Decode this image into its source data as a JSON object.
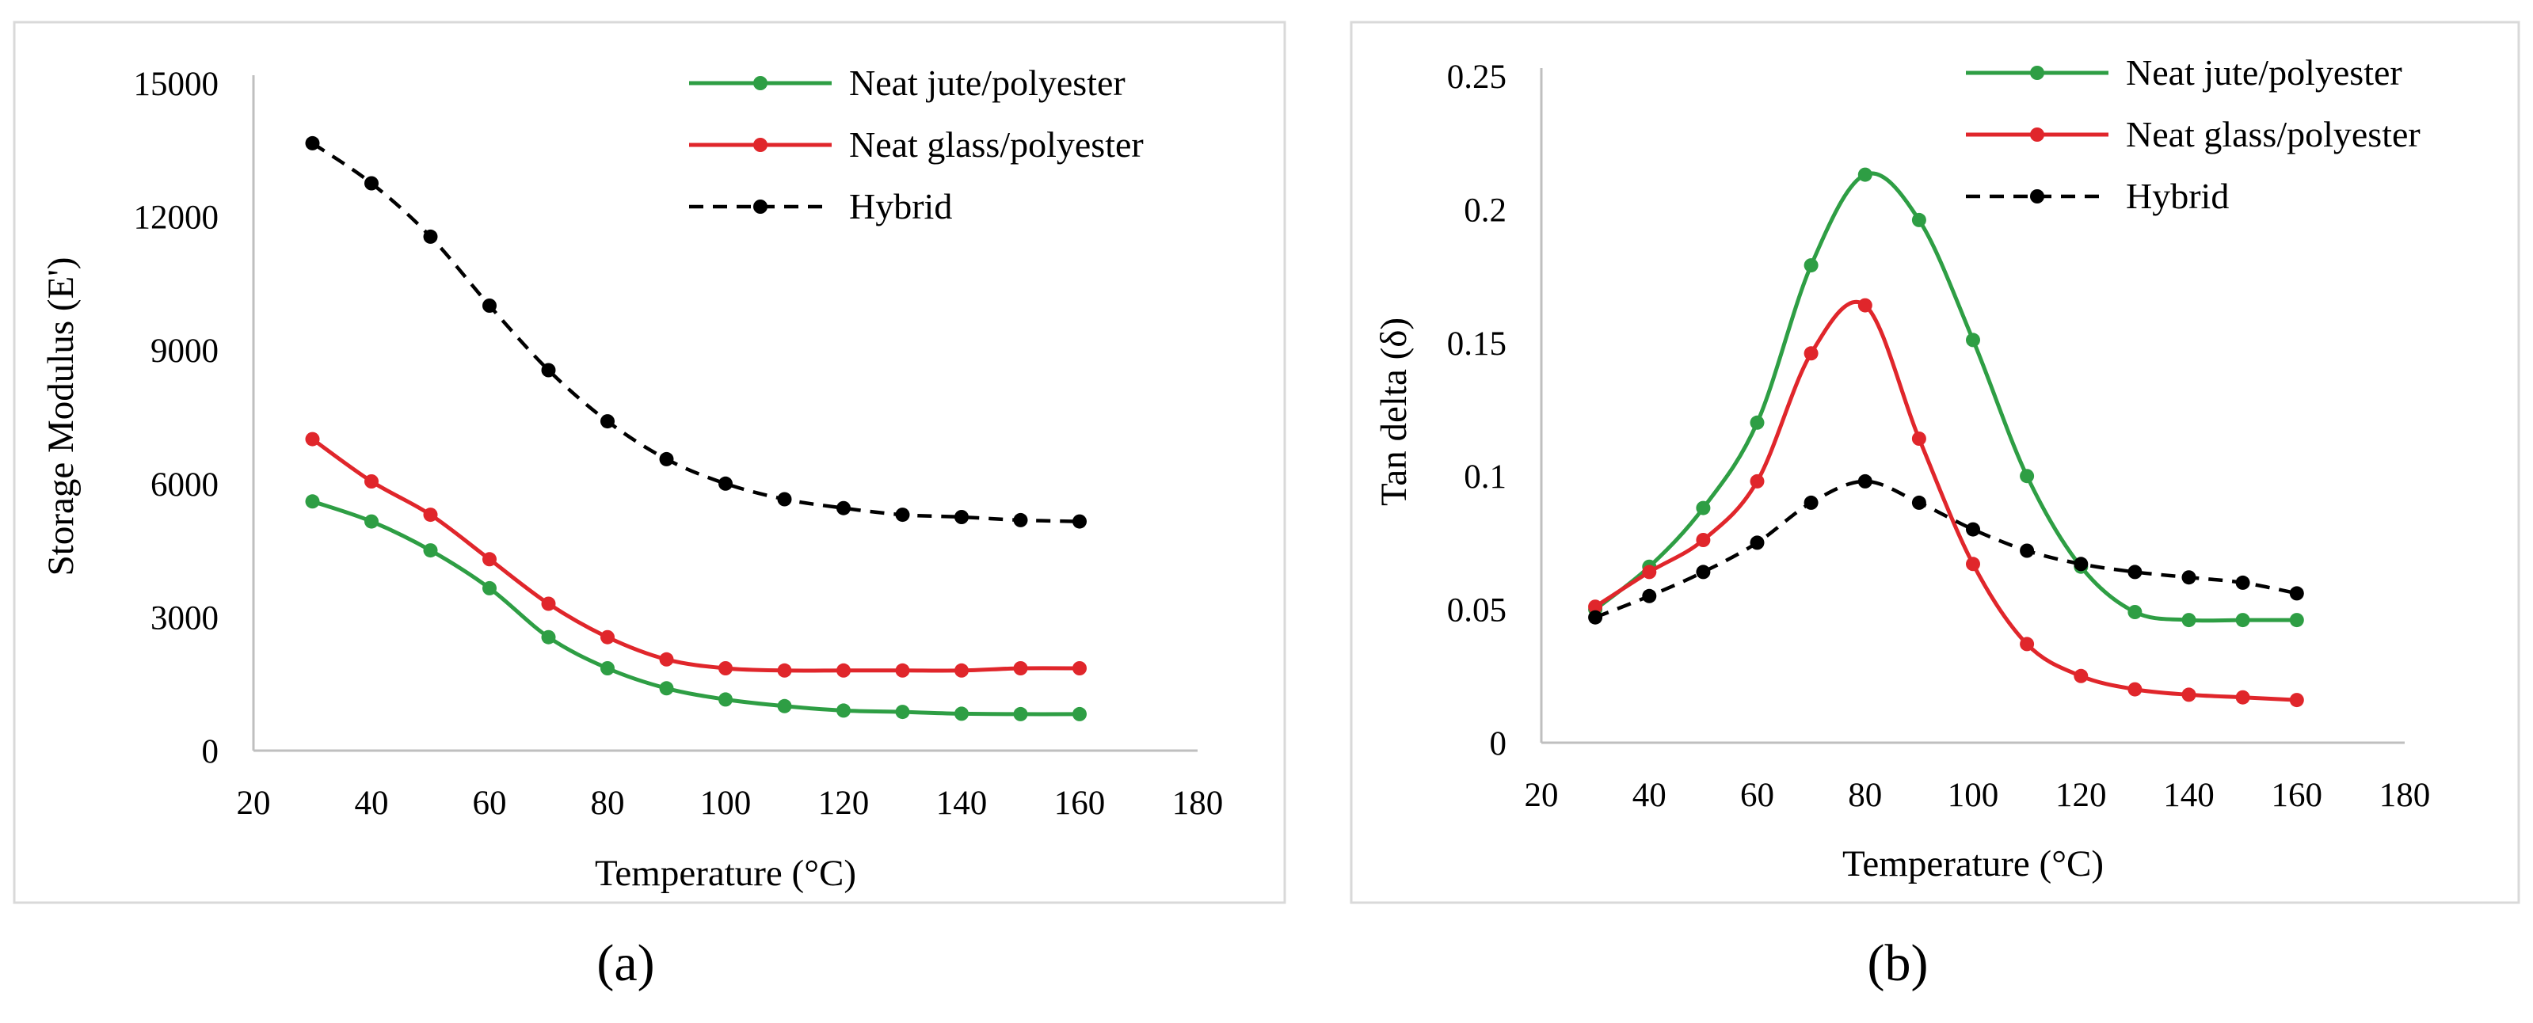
{
  "colors": {
    "jute": "#2e9e44",
    "glass": "#e0262b",
    "hybrid": "#000000",
    "frame": "#d9d9d9"
  },
  "panels": [
    {
      "caption": "(a)"
    },
    {
      "caption": "(b)"
    }
  ],
  "chart_data": [
    {
      "type": "line",
      "title": "",
      "xlabel": "Temperature (°C)",
      "ylabel": "Storage Modulus (E')",
      "xlim": [
        20,
        180
      ],
      "ylim": [
        0,
        15000
      ],
      "xticks": [
        20,
        40,
        60,
        80,
        100,
        120,
        140,
        160,
        180
      ],
      "yticks": [
        0,
        3000,
        6000,
        9000,
        12000,
        15000
      ],
      "ytick_labels": [
        "0",
        "3000",
        "6000",
        "9000",
        "12000",
        "15000"
      ],
      "grid": false,
      "legend_position": "top-right",
      "x": [
        30,
        40,
        50,
        60,
        70,
        80,
        90,
        100,
        110,
        120,
        130,
        140,
        150,
        160
      ],
      "series": [
        {
          "name": "Neat jute/polyester",
          "style": "solid",
          "color": "#2e9e44",
          "values": [
            5600,
            5150,
            4500,
            3650,
            2550,
            1850,
            1400,
            1150,
            1000,
            900,
            870,
            830,
            820,
            820
          ]
        },
        {
          "name": "Neat glass/polyester",
          "style": "solid",
          "color": "#e0262b",
          "values": [
            7000,
            6050,
            5300,
            4300,
            3300,
            2550,
            2050,
            1850,
            1800,
            1800,
            1800,
            1800,
            1850,
            1850
          ]
        },
        {
          "name": "Hybrid",
          "style": "dashed",
          "color": "#000000",
          "values": [
            13650,
            12750,
            11550,
            10000,
            8550,
            7400,
            6550,
            6000,
            5650,
            5450,
            5300,
            5250,
            5180,
            5150
          ]
        }
      ]
    },
    {
      "type": "line",
      "title": "",
      "xlabel": "Temperature (°C)",
      "ylabel": "Tan delta (δ)",
      "xlim": [
        20,
        180
      ],
      "ylim": [
        0,
        0.25
      ],
      "xticks": [
        20,
        40,
        60,
        80,
        100,
        120,
        140,
        160,
        180
      ],
      "yticks": [
        0,
        0.05,
        0.1,
        0.15,
        0.2,
        0.25
      ],
      "ytick_labels": [
        "0",
        "0.05",
        "0.1",
        "0.15",
        "0.2",
        "0.25"
      ],
      "grid": false,
      "legend_position": "top-right",
      "x": [
        30,
        40,
        50,
        60,
        70,
        80,
        90,
        100,
        110,
        120,
        130,
        140,
        150,
        160
      ],
      "series": [
        {
          "name": "Neat jute/polyester",
          "style": "solid",
          "color": "#2e9e44",
          "values": [
            0.05,
            0.066,
            0.088,
            0.12,
            0.179,
            0.213,
            0.196,
            0.151,
            0.1,
            0.066,
            0.049,
            0.046,
            0.046,
            0.046
          ]
        },
        {
          "name": "Neat glass/polyester",
          "style": "solid",
          "color": "#e0262b",
          "values": [
            0.051,
            0.064,
            0.076,
            0.098,
            0.146,
            0.164,
            0.114,
            0.067,
            0.037,
            0.025,
            0.02,
            0.018,
            0.017,
            0.016
          ]
        },
        {
          "name": "Hybrid",
          "style": "dashed",
          "color": "#000000",
          "values": [
            0.047,
            0.055,
            0.064,
            0.075,
            0.09,
            0.098,
            0.09,
            0.08,
            0.072,
            0.067,
            0.064,
            0.062,
            0.06,
            0.056
          ]
        }
      ]
    }
  ]
}
